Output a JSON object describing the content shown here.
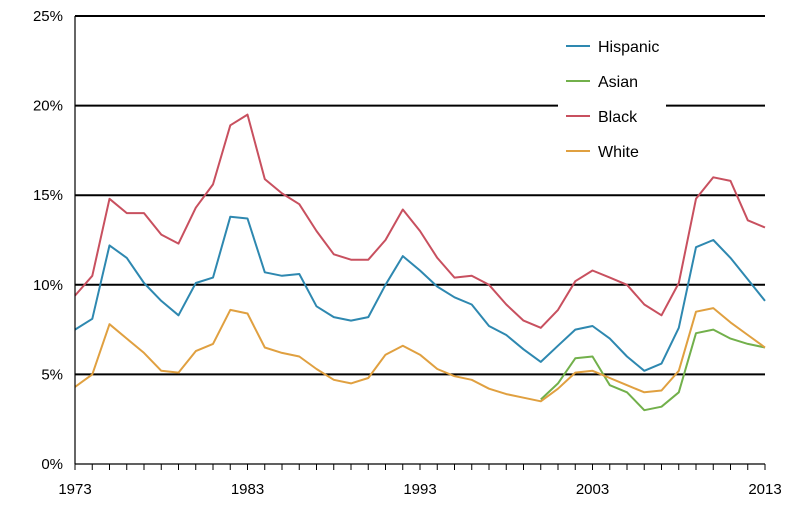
{
  "chart_data": {
    "type": "line",
    "title": "",
    "xlabel": "",
    "ylabel": "",
    "xlim": [
      1973,
      2013
    ],
    "ylim": [
      0,
      25
    ],
    "x_ticks": [
      "1973",
      "1983",
      "1993",
      "2003",
      "2013"
    ],
    "y_ticks": [
      "0%",
      "5%",
      "10%",
      "15%",
      "20%",
      "25%"
    ],
    "grid": "horizontal",
    "legend_position": "top-right",
    "x": [
      1973,
      1974,
      1975,
      1976,
      1977,
      1978,
      1979,
      1980,
      1981,
      1982,
      1983,
      1984,
      1985,
      1986,
      1987,
      1988,
      1989,
      1990,
      1991,
      1992,
      1993,
      1994,
      1995,
      1996,
      1997,
      1998,
      1999,
      2000,
      2001,
      2002,
      2003,
      2004,
      2005,
      2006,
      2007,
      2008,
      2009,
      2010,
      2011,
      2012,
      2013
    ],
    "series": [
      {
        "name": "Hispanic",
        "color": "#2e88b0",
        "values": [
          7.5,
          8.1,
          12.2,
          11.5,
          10.1,
          9.1,
          8.3,
          10.1,
          10.4,
          13.8,
          13.7,
          10.7,
          10.5,
          10.6,
          8.8,
          8.2,
          8.0,
          8.2,
          10.0,
          11.6,
          10.8,
          9.9,
          9.3,
          8.9,
          7.7,
          7.2,
          6.4,
          5.7,
          6.6,
          7.5,
          7.7,
          7.0,
          6.0,
          5.2,
          5.6,
          7.6,
          12.1,
          12.5,
          11.5,
          10.3,
          9.1
        ]
      },
      {
        "name": "Asian",
        "color": "#72b04b",
        "values": [
          null,
          null,
          null,
          null,
          null,
          null,
          null,
          null,
          null,
          null,
          null,
          null,
          null,
          null,
          null,
          null,
          null,
          null,
          null,
          null,
          null,
          null,
          null,
          null,
          null,
          null,
          null,
          3.6,
          4.5,
          5.9,
          6.0,
          4.4,
          4.0,
          3.0,
          3.2,
          4.0,
          7.3,
          7.5,
          7.0,
          6.7,
          6.5
        ]
      },
      {
        "name": "Black",
        "color": "#c8505f",
        "values": [
          9.4,
          10.5,
          14.8,
          14.0,
          14.0,
          12.8,
          12.3,
          14.3,
          15.6,
          18.9,
          19.5,
          15.9,
          15.1,
          14.5,
          13.0,
          11.7,
          11.4,
          11.4,
          12.5,
          14.2,
          13.0,
          11.5,
          10.4,
          10.5,
          10.0,
          8.9,
          8.0,
          7.6,
          8.6,
          10.2,
          10.8,
          10.4,
          10.0,
          8.9,
          8.3,
          10.1,
          14.8,
          16.0,
          15.8,
          13.6,
          13.2
        ]
      },
      {
        "name": "White",
        "color": "#e0a040",
        "values": [
          4.3,
          5.0,
          7.8,
          7.0,
          6.2,
          5.2,
          5.1,
          6.3,
          6.7,
          8.6,
          8.4,
          6.5,
          6.2,
          6.0,
          5.3,
          4.7,
          4.5,
          4.8,
          6.1,
          6.6,
          6.1,
          5.3,
          4.9,
          4.7,
          4.2,
          3.9,
          3.7,
          3.5,
          4.2,
          5.1,
          5.2,
          4.8,
          4.4,
          4.0,
          4.1,
          5.2,
          8.5,
          8.7,
          7.9,
          7.2,
          6.5
        ]
      }
    ]
  }
}
